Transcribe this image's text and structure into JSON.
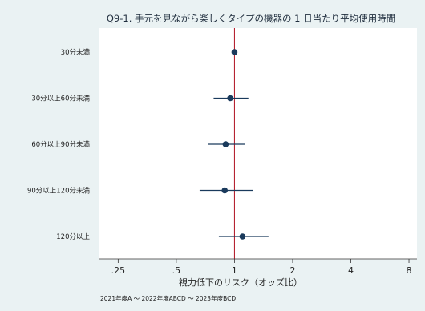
{
  "chart_data": {
    "type": "forest",
    "title": "Q9-1. 手元を見ながら楽しくタイプの機器の 1 日当たり平均使用時間",
    "xlabel": "視力低下のリスク（オッズ比）",
    "x_scale": "log",
    "xlim": [
      0.2,
      8.8
    ],
    "reference_line": 1,
    "x_ticks": [
      {
        "value": 0.25,
        "label": ".25"
      },
      {
        "value": 0.5,
        "label": ".5"
      },
      {
        "value": 1,
        "label": "1"
      },
      {
        "value": 2,
        "label": "2"
      },
      {
        "value": 4,
        "label": "4"
      },
      {
        "value": 8,
        "label": "8"
      }
    ],
    "categories": [
      "30分未満",
      "30分以上60分未満",
      "60分以上90分未満",
      "90分以上120分未満",
      "120分以上"
    ],
    "estimates": [
      1.0,
      0.95,
      0.9,
      0.89,
      1.1
    ],
    "ci_low": [
      null,
      0.78,
      0.73,
      0.66,
      0.83
    ],
    "ci_high": [
      null,
      1.18,
      1.13,
      1.25,
      1.5
    ],
    "note": "2021年度A ～ 2022年度ABCD ～ 2023年度BCD",
    "grid": false,
    "colors": {
      "background": "#eaf2f3",
      "plot_bg": "#ffffff",
      "point": "#1a3a5c",
      "ci": "#1a3a5c",
      "reference": "#b01020"
    }
  }
}
